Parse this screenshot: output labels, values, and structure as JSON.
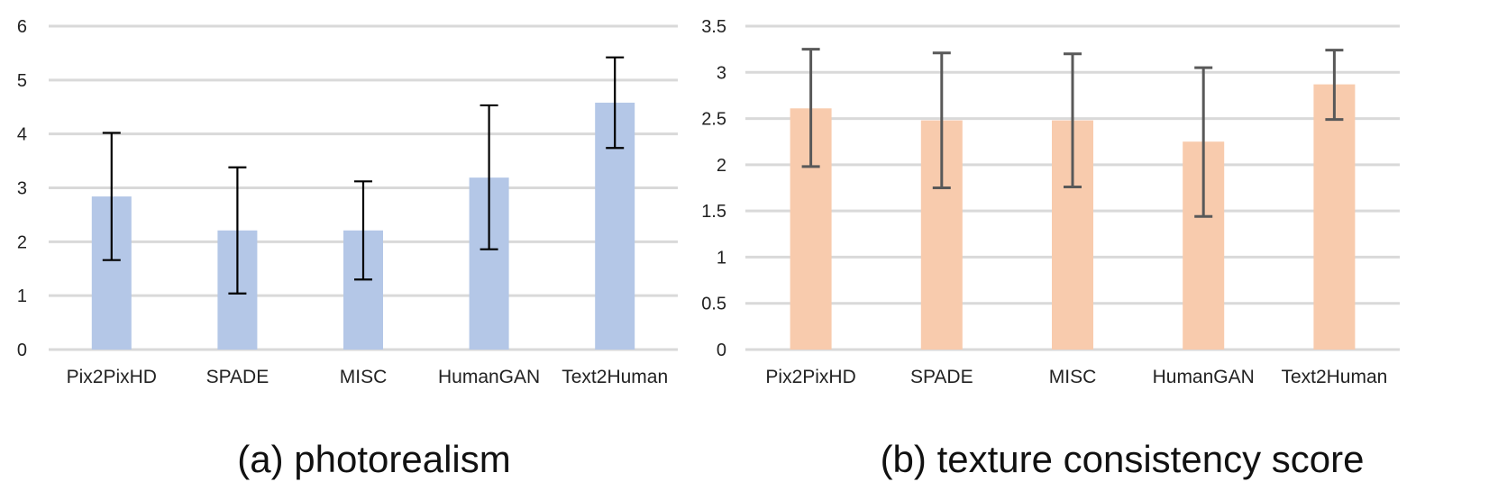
{
  "captions": [
    "(a) photorealism",
    "(b) texture consistency score"
  ],
  "chart_data": [
    {
      "type": "bar",
      "title": "",
      "caption": "(a) photorealism",
      "categories": [
        "Pix2PixHD",
        "SPADE",
        "MISC",
        "HumanGAN",
        "Text2Human"
      ],
      "series": [
        {
          "values": [
            2.84,
            2.21,
            2.21,
            3.19,
            4.58
          ],
          "error_low": [
            1.66,
            1.04,
            1.3,
            1.86,
            3.74
          ],
          "error_high": [
            4.02,
            3.38,
            3.12,
            4.53,
            5.42
          ]
        }
      ],
      "ylim": [
        0,
        6
      ],
      "yticks": [
        "0",
        "1",
        "2",
        "3",
        "4",
        "5",
        "6"
      ],
      "grid": true,
      "bar_color": "#b4c7e7",
      "error_bar_color": "#000000",
      "gridline_color": "#d9d9d9"
    },
    {
      "type": "bar",
      "title": "",
      "caption": "(b) texture consistency score",
      "categories": [
        "Pix2PixHD",
        "SPADE",
        "MISC",
        "HumanGAN",
        "Text2Human"
      ],
      "series": [
        {
          "values": [
            2.61,
            2.48,
            2.48,
            2.25,
            2.87
          ],
          "error_low": [
            1.98,
            1.75,
            1.76,
            1.44,
            2.49
          ],
          "error_high": [
            3.25,
            3.21,
            3.2,
            3.05,
            3.24
          ]
        }
      ],
      "ylim": [
        0,
        3.5
      ],
      "yticks": [
        "0",
        "0.5",
        "1",
        "1.5",
        "2",
        "2.5",
        "3",
        "3.5"
      ],
      "grid": true,
      "bar_color": "#f8cbad",
      "error_bar_color": "#595959",
      "gridline_color": "#d9d9d9"
    }
  ]
}
